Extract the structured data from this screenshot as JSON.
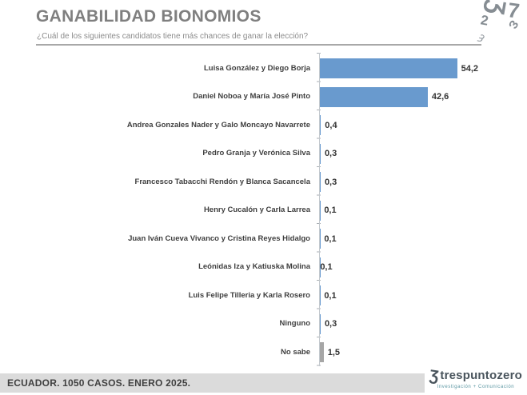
{
  "header": {
    "title": "GANABILIDAD BIONOMIOS",
    "subtitle": "¿Cuál de los siguientes candidatos tiene más chances de ganar la elección?"
  },
  "chart_data": {
    "type": "bar",
    "orientation": "horizontal",
    "title": "GANABILIDAD BIONOMIOS",
    "question": "¿Cuál de los siguientes candidatos tiene más chances de ganar la elección?",
    "categories": [
      "Luisa González y Diego Borja",
      "Daniel Noboa y María José Pinto",
      "Andrea Gonzales Nader y Galo Moncayo Navarrete",
      "Pedro Granja y Verónica Silva",
      "Francesco Tabacchi Rendón y Blanca Sacancela",
      "Henry Cucalón y Carla Larrea",
      "Juan Iván Cueva Vivanco y Cristina Reyes Hidalgo",
      "Leónidas Iza y Katiuska Molina",
      "Luis Felipe Tilleria y Karla Rosero",
      "Ninguno",
      "No sabe"
    ],
    "values": [
      54.2,
      42.6,
      0.4,
      0.3,
      0.3,
      0.1,
      0.1,
      0.1,
      0.1,
      0.3,
      1.5
    ],
    "value_labels": [
      "54,2",
      "42,6",
      "0,4",
      "0,3",
      "0,3",
      "0,1",
      "0,1",
      "0,1",
      "0,1",
      "0,3",
      "1,5"
    ],
    "bar_styles": [
      "blue",
      "blue",
      "blue",
      "blue",
      "blue",
      "blue",
      "blue",
      "blue",
      "blue",
      "blue",
      "gray"
    ],
    "xlim": [
      0,
      60
    ],
    "grid": false,
    "legend": false
  },
  "colors": {
    "bar_blue": "#699ace",
    "bar_gray": "#a6a6a6",
    "title_gray": "#7f7f7f",
    "axis_gray": "#c3c9ce",
    "footer_bg": "#dbdbdb"
  },
  "footer": {
    "source": "ECUADOR. 1050 CASOS. ENERO 2025.",
    "brand_glyph": "Ʒ",
    "brand_name": "trespuntozero",
    "brand_tagline": "Investigación + Comunicación"
  },
  "decor": {
    "corner_glyphs": [
      "Ʒ",
      "2",
      "7",
      "Ɛ"
    ],
    "rule_swirl": "ȝ"
  }
}
